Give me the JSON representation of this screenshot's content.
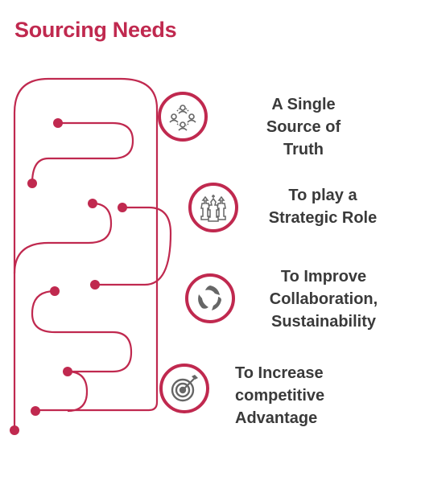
{
  "title": "Sourcing Needs",
  "colors": {
    "accent": "#c0294f",
    "text": "#3a3a3a",
    "icon": "#666666"
  },
  "needs": [
    {
      "icon": "people-network-icon",
      "lines": [
        "A Single",
        "Source of",
        "Truth"
      ]
    },
    {
      "icon": "chess-pieces-icon",
      "lines": [
        "To play a",
        "Strategic Role"
      ]
    },
    {
      "icon": "recycle-leaves-icon",
      "lines": [
        "To Improve",
        "Collaboration,",
        "Sustainability"
      ]
    },
    {
      "icon": "target-arrow-icon",
      "lines": [
        "To Increase",
        "competitive",
        "Advantage"
      ]
    }
  ]
}
